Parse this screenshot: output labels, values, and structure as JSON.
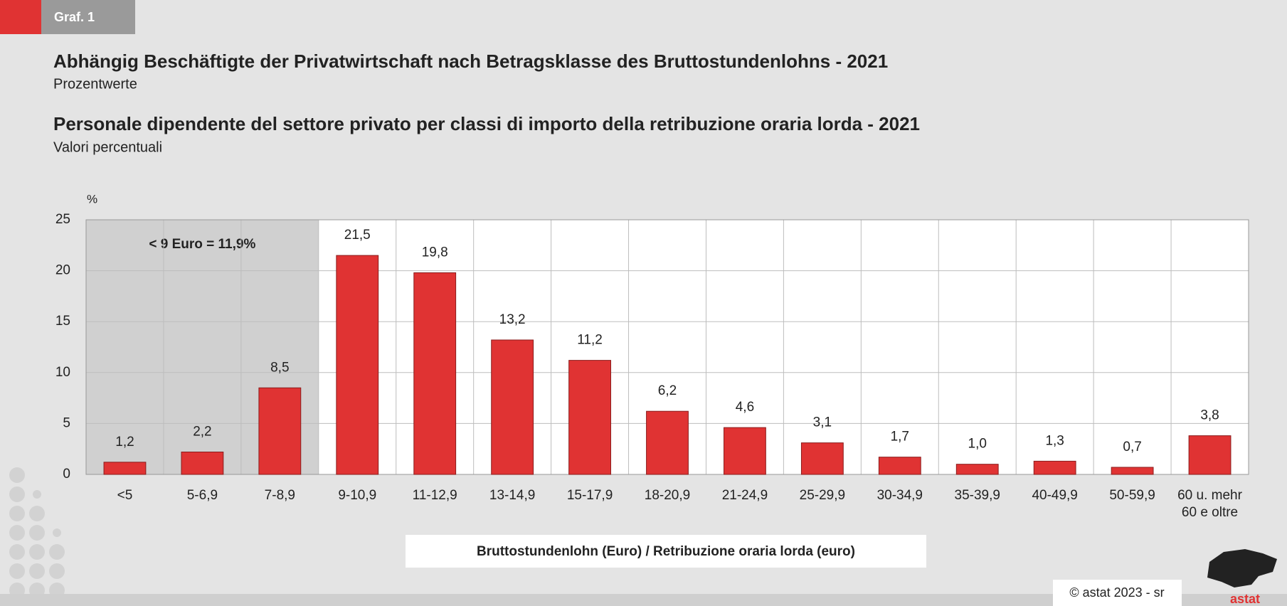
{
  "header": {
    "label": "Graf. 1"
  },
  "chart_data": {
    "type": "bar",
    "title": "Abhängig Beschäftigte der Privatwirtschaft nach Betragsklasse des Bruttostundenlohns - 2021",
    "subtitle": "Prozentwerte",
    "title_it": "Personale dipendente del settore privato per classi di importo della retribuzione oraria lorda - 2021",
    "subtitle_it": "Valori percentuali",
    "y_axis_label": "%",
    "x_axis_label": "Bruttostundenlohn (Euro) / Retribuzione oraria lorda (euro)",
    "annotation": "< 9 Euro = 11,9%",
    "categories": [
      "<5",
      "5-6,9",
      "7-8,9",
      "9-10,9",
      "11-12,9",
      "13-14,9",
      "15-17,9",
      "18-20,9",
      "21-24,9",
      "25-29,9",
      "30-34,9",
      "35-39,9",
      "40-49,9",
      "50-59,9",
      "60 u. mehr\n60 e oltre"
    ],
    "values": [
      1.2,
      2.2,
      8.5,
      21.5,
      19.8,
      13.2,
      11.2,
      6.2,
      4.6,
      3.1,
      1.7,
      1.0,
      1.3,
      0.7,
      3.8
    ],
    "value_labels": [
      "1,2",
      "2,2",
      "8,5",
      "21,5",
      "19,8",
      "13,2",
      "11,2",
      "6,2",
      "4,6",
      "3,1",
      "1,7",
      "1,0",
      "1,3",
      "0,7",
      "3,8"
    ],
    "color": "#e03333",
    "ylim": [
      0,
      25
    ],
    "yticks": [
      0,
      5,
      10,
      15,
      20,
      25
    ],
    "grid": true
  },
  "footer": {
    "copyright": "© astat 2023 - sr",
    "logo": "astat"
  }
}
